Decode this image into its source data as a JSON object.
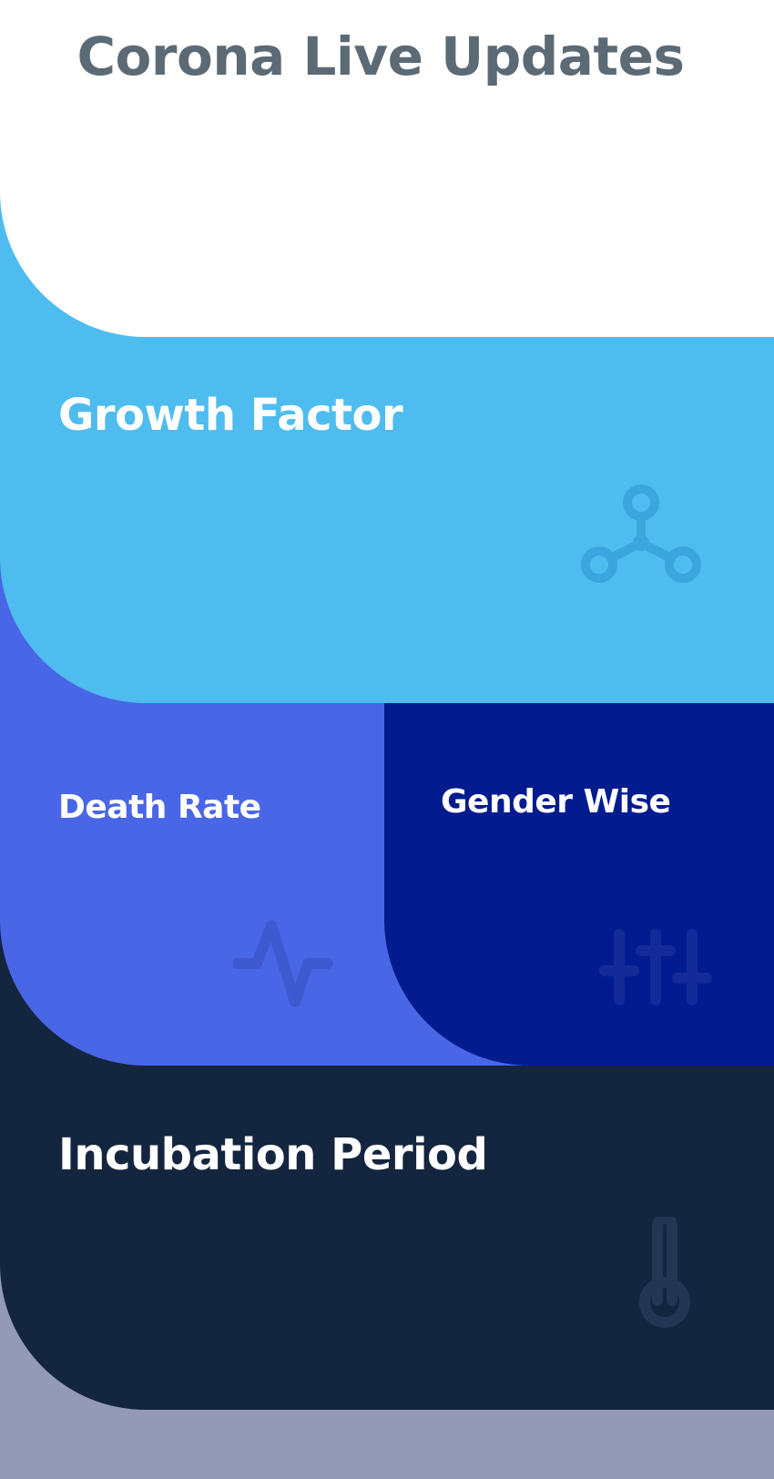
{
  "header": {
    "title": "Corona Live Updates"
  },
  "cards": {
    "growth": {
      "label": "Growth Factor",
      "icon": "network-nodes-icon",
      "bg": "#4ebcef"
    },
    "death": {
      "label": "Death Rate",
      "icon": "pulse-icon",
      "bg": "#4866e6"
    },
    "gender": {
      "label": "Gender Wise",
      "icon": "sliders-icon",
      "bg": "#021c8f"
    },
    "incubation": {
      "label": "Incubation Period",
      "icon": "thermometer-icon",
      "bg": "#14253f"
    }
  },
  "footer": {
    "bg": "#9499b7"
  }
}
